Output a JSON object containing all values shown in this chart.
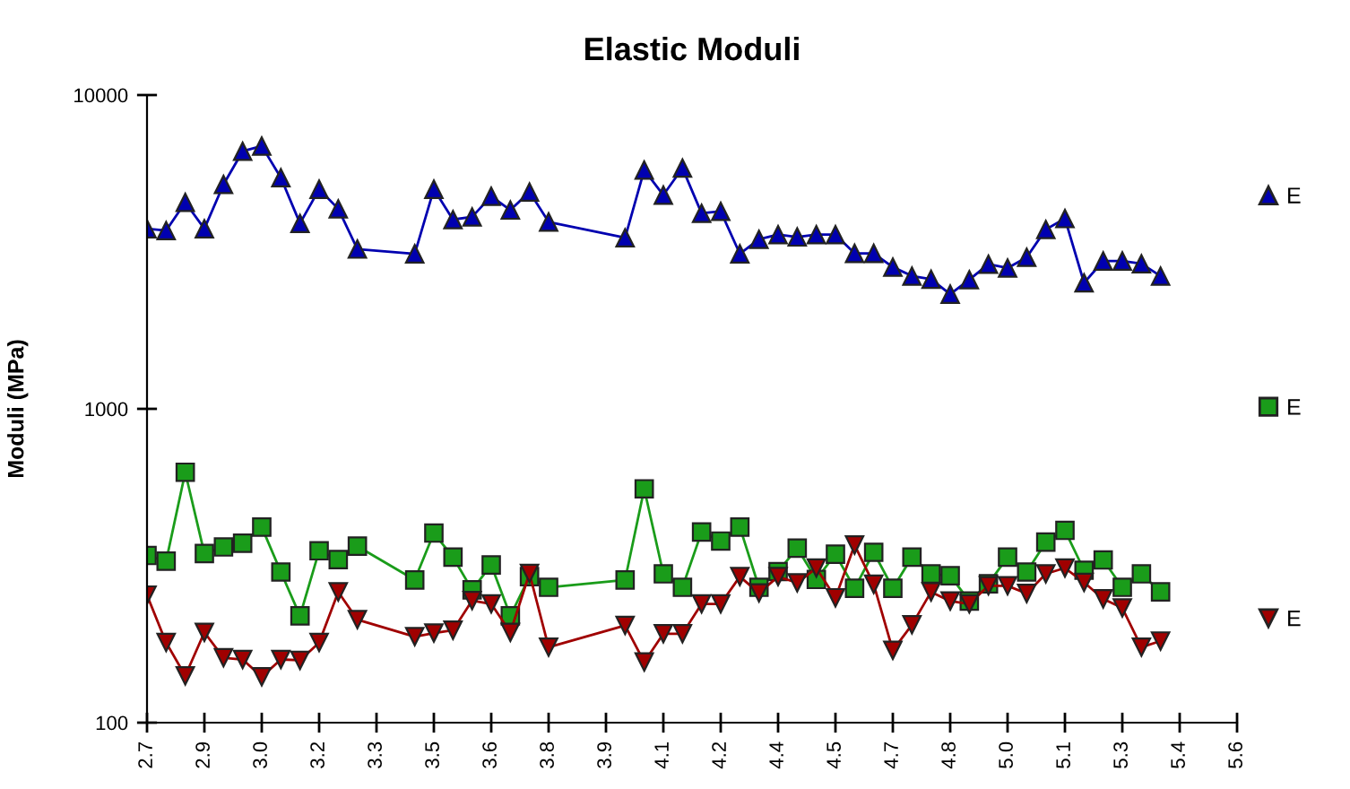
{
  "chart_data": {
    "type": "line",
    "title": "Elastic Moduli",
    "ylabel": "Moduli (MPa)",
    "x": [
      2.7,
      2.75,
      2.8,
      2.85,
      2.9,
      2.95,
      3.0,
      3.05,
      3.1,
      3.15,
      3.2,
      3.25,
      3.4,
      3.45,
      3.5,
      3.55,
      3.6,
      3.65,
      3.7,
      3.75,
      3.95,
      4.0,
      4.05,
      4.1,
      4.15,
      4.2,
      4.25,
      4.3,
      4.35,
      4.4,
      4.45,
      4.5,
      4.55,
      4.6,
      4.65,
      4.7,
      4.75,
      4.8,
      4.85,
      4.9,
      4.95,
      5.0,
      5.05,
      5.1,
      5.15,
      5.2,
      5.25,
      5.3,
      5.35
    ],
    "series": [
      {
        "name": "E",
        "color": "#0000b0",
        "marker": "triangle",
        "values": [
          3750,
          3700,
          4550,
          3750,
          5190,
          6620,
          6880,
          5450,
          3900,
          5010,
          4340,
          3230,
          3120,
          5010,
          4010,
          4090,
          4760,
          4300,
          4910,
          3940,
          3510,
          5770,
          4800,
          5850,
          4200,
          4260,
          3120,
          3470,
          3590,
          3530,
          3590,
          3590,
          3130,
          3130,
          2830,
          2650,
          2590,
          2320,
          2580,
          2890,
          2810,
          3040,
          3730,
          4040,
          2520,
          2960,
          2960,
          2900,
          2650
        ]
      },
      {
        "name": "E",
        "color": "#1a9c1a",
        "marker": "square",
        "values": [
          341,
          327,
          628,
          346,
          363,
          373,
          420,
          302,
          219,
          353,
          331,
          365,
          285,
          402,
          337,
          265,
          318,
          219,
          292,
          270,
          285,
          556,
          298,
          270,
          405,
          379,
          420,
          270,
          303,
          360,
          286,
          344,
          268,
          349,
          268,
          337,
          298,
          294,
          244,
          277,
          337,
          302,
          376,
          410,
          306,
          330,
          270,
          298,
          261
        ]
      },
      {
        "name": "E",
        "color": "#a00000",
        "marker": "triangle_down",
        "values": [
          255,
          180,
          141,
          194,
          161,
          159,
          140,
          159,
          158,
          180,
          261,
          213,
          188,
          193,
          197,
          245,
          239,
          194,
          299,
          174,
          204,
          156,
          192,
          192,
          239,
          239,
          292,
          259,
          292,
          279,
          311,
          250,
          368,
          276,
          170,
          205,
          261,
          244,
          239,
          273,
          273,
          258,
          298,
          311,
          280,
          248,
          232,
          174,
          182
        ]
      }
    ],
    "log": "y",
    "ylim": [
      100,
      10000
    ],
    "yticks": [
      100,
      1000,
      10000
    ],
    "xlim": [
      2.7,
      5.55
    ],
    "xticks": [
      2.7,
      {
        "value": 2.85,
        "label": "2.9"
      },
      {
        "value": 3.0,
        "label": "3.0"
      },
      {
        "value": 3.15,
        "label": "3.2"
      },
      3.3,
      {
        "value": 3.45,
        "label": "3.5"
      },
      3.6,
      {
        "value": 3.75,
        "label": "3.8"
      },
      3.9,
      {
        "value": 4.05,
        "label": "4.1"
      },
      4.2,
      {
        "value": 4.35,
        "label": "4.4"
      },
      4.5,
      {
        "value": 4.65,
        "label": "4.7"
      },
      4.8,
      {
        "value": 4.95,
        "label": "5.0"
      },
      5.1,
      {
        "value": 5.25,
        "label": "5.3"
      },
      5.4,
      {
        "value": 5.55,
        "label": "5.6"
      }
    ],
    "grid": false,
    "legend": "right",
    "line_style": "solid"
  }
}
